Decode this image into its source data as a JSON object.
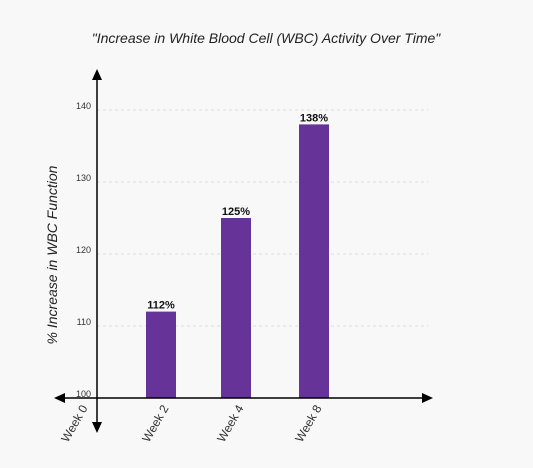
{
  "chart_data": {
    "type": "bar",
    "title": "\"Increase in White Blood Cell (WBC) Activity Over Time\"",
    "xlabel": "",
    "ylabel": "% Increase in WBC Function",
    "categories": [
      "Week 0",
      "Week 2",
      "Week 4",
      "Week 8"
    ],
    "values": [
      100,
      112,
      125,
      138
    ],
    "data_labels": [
      "",
      "112%",
      "125%",
      "138%"
    ],
    "yticks": [
      "100",
      "110",
      "120",
      "130",
      "140"
    ],
    "ylim": [
      100,
      140
    ],
    "grid": true,
    "bar_color": "#663399",
    "grid_color": "#dddddd",
    "axis_color": "#000000"
  }
}
